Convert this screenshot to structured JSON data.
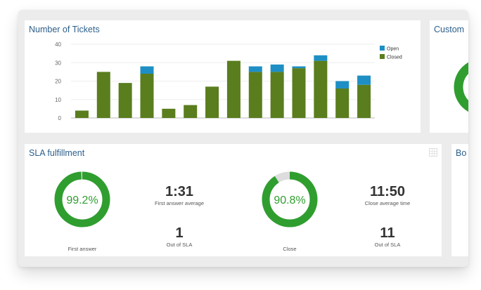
{
  "tickets_panel": {
    "title": "Number of Tickets"
  },
  "customer_panel": {
    "title": "Custom"
  },
  "sla_panel": {
    "title": "SLA fulfillment",
    "first_answer": {
      "percent_label": "99.2%",
      "percent": 99.2,
      "caption": "First answer"
    },
    "first_answer_average": {
      "value": "1:31",
      "caption": "First answer average"
    },
    "first_answer_out": {
      "value": "1",
      "caption": "Out of SLA"
    },
    "close": {
      "percent_label": "90.8%",
      "percent": 90.8,
      "caption": "Close"
    },
    "close_average": {
      "value": "11:50",
      "caption": "Close average time"
    },
    "close_out": {
      "value": "11",
      "caption": "Out of SLA"
    }
  },
  "bo_panel": {
    "title": "Bo"
  },
  "colors": {
    "open": "#1e8fc4",
    "closed": "#5a7d1e",
    "donut": "#2f9e2f",
    "donut_track": "#dddddd"
  },
  "chart_data": {
    "type": "bar",
    "stacked": true,
    "categories": [
      "",
      "",
      "",
      "",
      "",
      "",
      "",
      "",
      "",
      "",
      "",
      "",
      "",
      ""
    ],
    "series": [
      {
        "name": "Closed",
        "values": [
          4,
          25,
          19,
          24,
          5,
          7,
          17,
          31,
          25,
          25,
          27,
          31,
          16,
          18
        ]
      },
      {
        "name": "Open",
        "values": [
          0,
          0,
          0,
          4,
          0,
          0,
          0,
          0,
          3,
          4,
          1,
          3,
          4,
          5
        ]
      }
    ],
    "yticks": [
      "0",
      "10",
      "20",
      "30",
      "40"
    ],
    "ylim": [
      0,
      40
    ],
    "legend": [
      "Open",
      "Closed"
    ],
    "legend_position": "top-right",
    "grid": true
  }
}
